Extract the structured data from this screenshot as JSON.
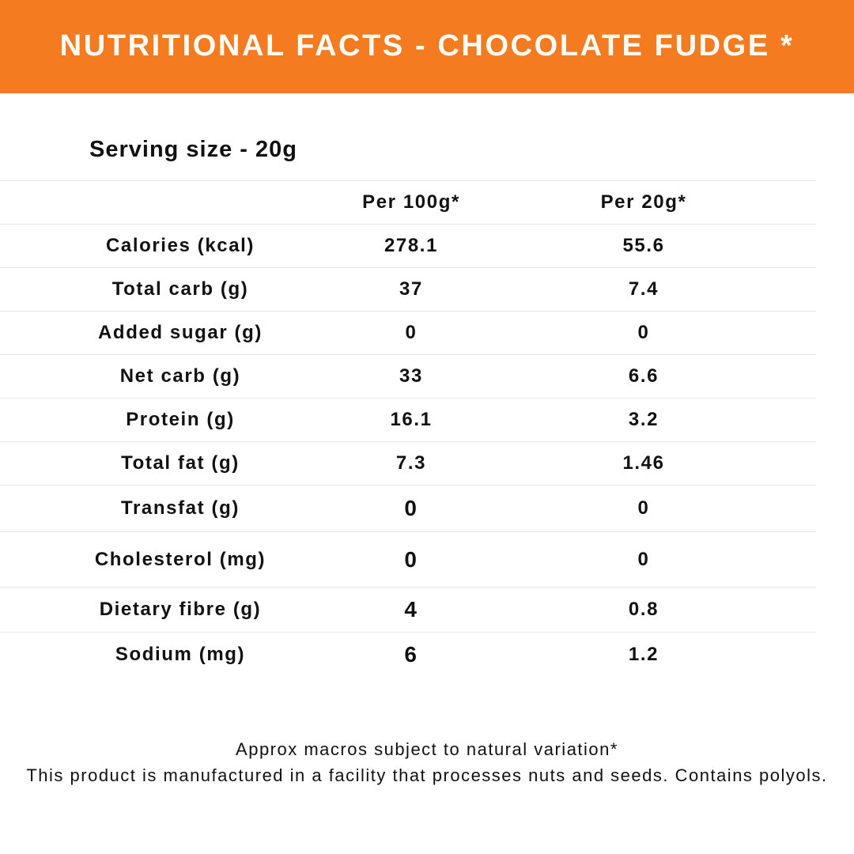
{
  "colors": {
    "banner": "#F47B20",
    "text": "#111111",
    "divider": "#E6E6E6"
  },
  "header": {
    "title": "NUTRITIONAL FACTS - CHOCOLATE FUDGE *"
  },
  "serving": {
    "label": "Serving size - 20g"
  },
  "table": {
    "columns": [
      "",
      "Per 100g*",
      "Per 20g*"
    ],
    "rows": [
      {
        "label": "Calories (kcal)",
        "per100": "278.1",
        "per20": "55.6"
      },
      {
        "label": "Total carb (g)",
        "per100": "37",
        "per20": "7.4"
      },
      {
        "label": "Added sugar (g)",
        "per100": "0",
        "per20": "0"
      },
      {
        "label": "Net carb (g)",
        "per100": "33",
        "per20": "6.6"
      },
      {
        "label": "Protein (g)",
        "per100": "16.1",
        "per20": "3.2"
      },
      {
        "label": "Total fat (g)",
        "per100": "7.3",
        "per20": "1.46"
      },
      {
        "label": "Transfat (g)",
        "per100": "0",
        "per20": "0"
      },
      {
        "label": "Cholesterol (mg)",
        "per100": "0",
        "per20": "0"
      },
      {
        "label": "Dietary fibre (g)",
        "per100": "4",
        "per20": "0.8"
      },
      {
        "label": "Sodium (mg)",
        "per100": "6",
        "per20": "1.2"
      }
    ]
  },
  "footer": {
    "line1": "Approx macros subject to natural variation*",
    "line2": "This product is manufactured in a facility that processes nuts and seeds. Contains polyols."
  }
}
